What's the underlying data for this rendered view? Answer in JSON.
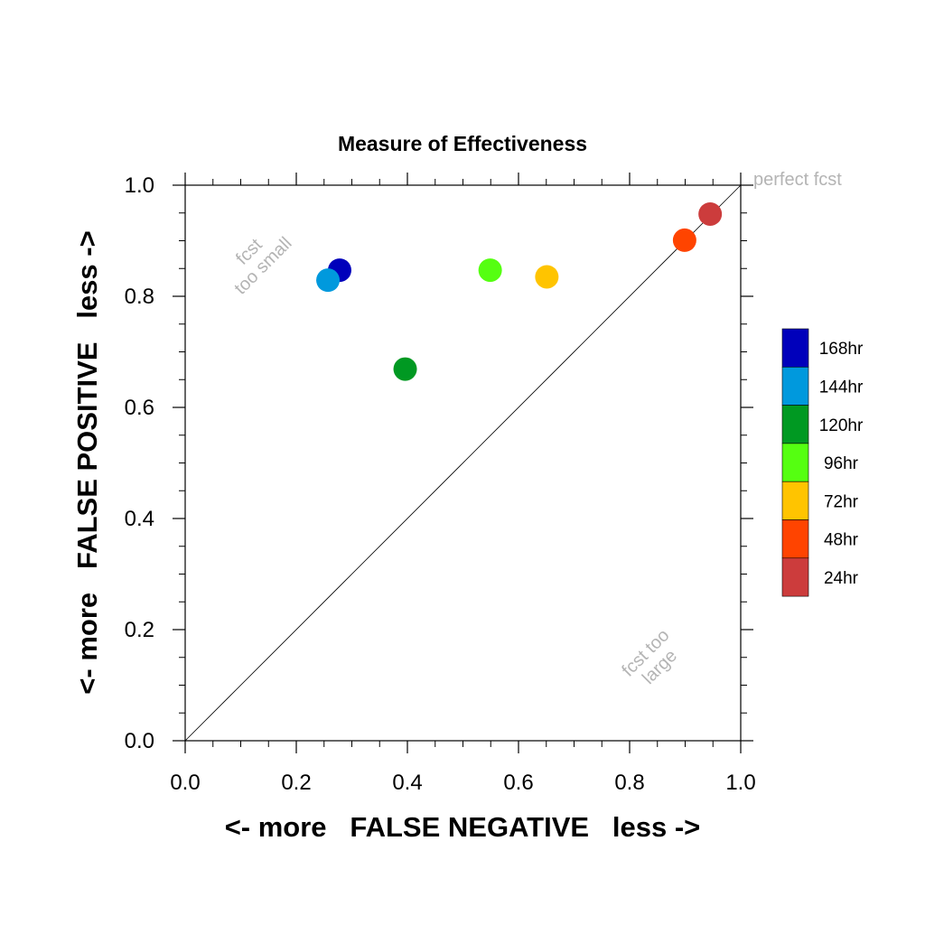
{
  "chart_data": {
    "type": "scatter",
    "title": "Measure of Effectiveness",
    "xlabel": "<- more   FALSE NEGATIVE   less ->",
    "ylabel": "<- more   FALSE POSITIVE   less ->",
    "xlim": [
      0,
      1
    ],
    "ylim": [
      0,
      1
    ],
    "xticks": [
      "0.0",
      "0.2",
      "0.4",
      "0.6",
      "0.8",
      "1.0"
    ],
    "yticks": [
      "0.0",
      "0.2",
      "0.4",
      "0.6",
      "0.8",
      "1.0"
    ],
    "grid": false,
    "legend_position": "right",
    "annotations": {
      "perfect": "perfect fcst",
      "too_small": [
        "fcst",
        "too small"
      ],
      "too_large": [
        "fcst too",
        "large"
      ]
    },
    "series": [
      {
        "name": "168hr",
        "color": "#0000bb",
        "x": 0.278,
        "y": 0.847
      },
      {
        "name": "144hr",
        "color": "#0099dd",
        "x": 0.257,
        "y": 0.829
      },
      {
        "name": "120hr",
        "color": "#009922",
        "x": 0.396,
        "y": 0.669
      },
      {
        "name": "96hr",
        "color": "#55ff11",
        "x": 0.549,
        "y": 0.847
      },
      {
        "name": "72hr",
        "color": "#ffc400",
        "x": 0.651,
        "y": 0.835
      },
      {
        "name": "48hr",
        "color": "#ff4400",
        "x": 0.899,
        "y": 0.901
      },
      {
        "name": "24hr",
        "color": "#cc3c3c",
        "x": 0.945,
        "y": 0.948
      }
    ]
  }
}
